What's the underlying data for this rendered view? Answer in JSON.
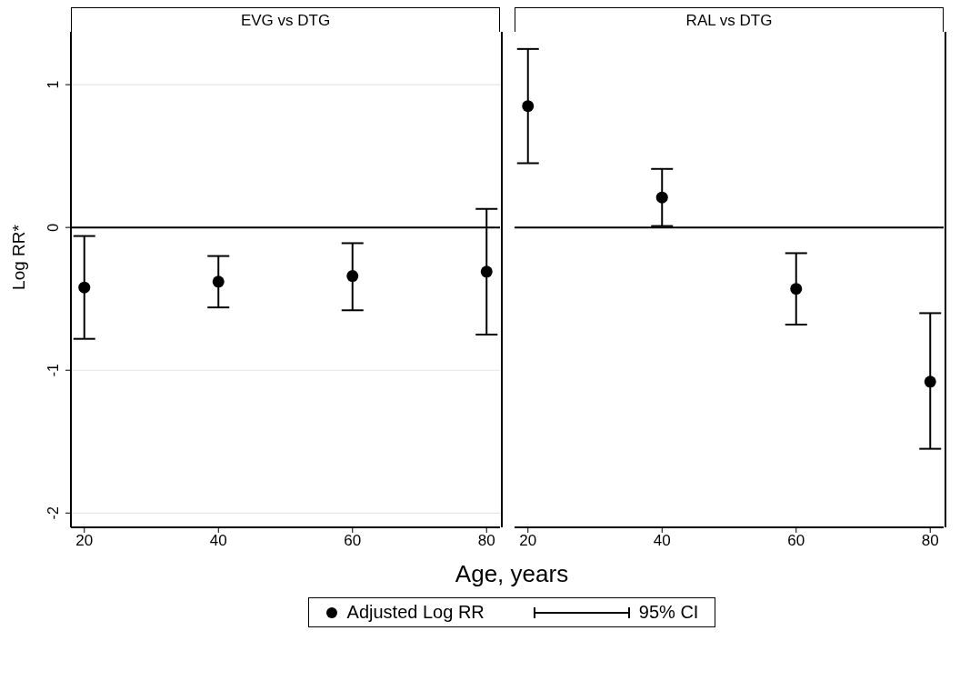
{
  "chart_data": [
    {
      "type": "scatter",
      "title": "EVG vs DTG",
      "xlabel": "Age, years",
      "ylabel": "Log RR*",
      "annotations": [
        "95% CI"
      ],
      "x": [
        20,
        40,
        60,
        80
      ],
      "series": [
        {
          "name": "Adjusted Log RR",
          "color": "#000000",
          "values": [
            -0.42,
            -0.38,
            -0.34,
            -0.31
          ],
          "errors": [
            [
              -0.78,
              -0.06
            ],
            [
              -0.56,
              -0.2
            ],
            [
              -0.58,
              -0.11
            ],
            [
              -0.75,
              0.13
            ]
          ]
        }
      ],
      "xlim": [
        18,
        82
      ],
      "xticks": [
        20,
        40,
        60,
        80
      ],
      "ylim": [
        -2.1,
        1.37
      ],
      "yticks": [
        -2,
        -1,
        0,
        1
      ],
      "grid": "y",
      "marker": "circle",
      "legend": "bottom",
      "ref_lines": [
        {
          "axis": "y",
          "value": 0,
          "color": "#000000"
        }
      ]
    },
    {
      "type": "scatter",
      "title": "RAL vs DTG",
      "x": [
        20,
        40,
        60,
        80
      ],
      "series": [
        {
          "color": "#000000",
          "values": [
            0.85,
            0.21,
            -0.43,
            -1.08
          ],
          "errors": [
            [
              0.45,
              1.25
            ],
            [
              0.01,
              0.41
            ],
            [
              -0.68,
              -0.18
            ],
            [
              -1.55,
              -0.6
            ]
          ]
        }
      ],
      "xlim": [
        18,
        82
      ],
      "xticks": [
        20,
        40,
        60,
        80
      ],
      "ylim": [
        -2.1,
        1.37
      ],
      "yticks": [
        -2,
        -1,
        0,
        1
      ],
      "grid": "y",
      "marker": "circle",
      "tick_labels": "x",
      "ref_lines": [
        {
          "axis": "y",
          "value": 0,
          "color": "#000000"
        }
      ]
    }
  ]
}
